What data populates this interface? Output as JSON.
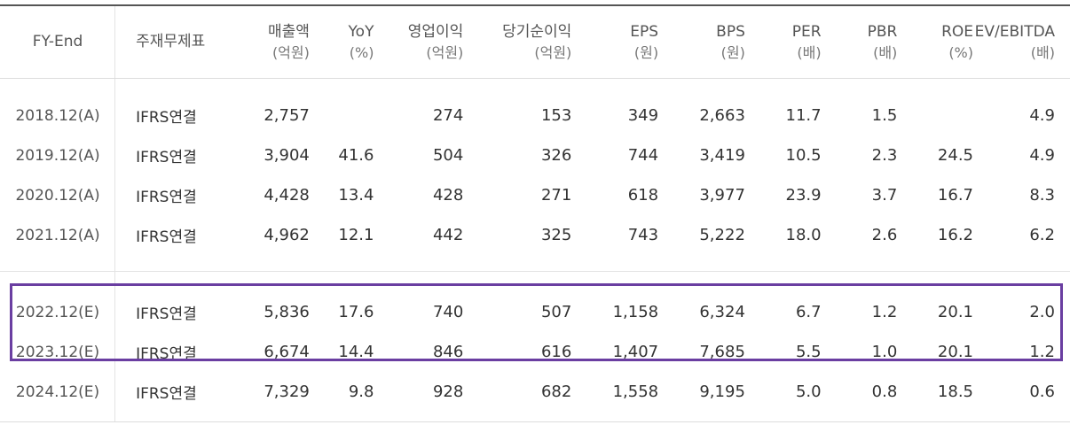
{
  "headers": [
    {
      "label": "FY-End",
      "unit": ""
    },
    {
      "label": "주재무제표",
      "unit": ""
    },
    {
      "label": "매출액",
      "unit": "(억원)"
    },
    {
      "label": "YoY",
      "unit": "(%)"
    },
    {
      "label": "영업이익",
      "unit": "(억원)"
    },
    {
      "label": "당기순이익",
      "unit": "(억원)"
    },
    {
      "label": "EPS",
      "unit": "(원)"
    },
    {
      "label": "BPS",
      "unit": "(원)"
    },
    {
      "label": "PER",
      "unit": "(배)"
    },
    {
      "label": "PBR",
      "unit": "(배)"
    },
    {
      "label": "ROE",
      "unit": "(%)"
    },
    {
      "label": "EV/EBITDA",
      "unit": "(배)"
    }
  ],
  "rows": [
    [
      "2018.12(A)",
      "IFRS연결",
      "2,757",
      "",
      "274",
      "153",
      "349",
      "2,663",
      "11.7",
      "1.5",
      "",
      "4.9"
    ],
    [
      "2019.12(A)",
      "IFRS연결",
      "3,904",
      "41.6",
      "504",
      "326",
      "744",
      "3,419",
      "10.5",
      "2.3",
      "24.5",
      "4.9"
    ],
    [
      "2020.12(A)",
      "IFRS연결",
      "4,428",
      "13.4",
      "428",
      "271",
      "618",
      "3,977",
      "23.9",
      "3.7",
      "16.7",
      "8.3"
    ],
    [
      "2021.12(A)",
      "IFRS연결",
      "4,962",
      "12.1",
      "442",
      "325",
      "743",
      "5,222",
      "18.0",
      "2.6",
      "16.2",
      "6.2"
    ],
    [
      "2022.12(E)",
      "IFRS연결",
      "5,836",
      "17.6",
      "740",
      "507",
      "1,158",
      "6,324",
      "6.7",
      "1.2",
      "20.1",
      "2.0"
    ],
    [
      "2023.12(E)",
      "IFRS연결",
      "6,674",
      "14.4",
      "846",
      "616",
      "1,407",
      "7,685",
      "5.5",
      "1.0",
      "20.1",
      "1.2"
    ],
    [
      "2024.12(E)",
      "IFRS연결",
      "7,329",
      "9.8",
      "928",
      "682",
      "1,558",
      "9,195",
      "5.0",
      "0.8",
      "18.5",
      "0.6"
    ]
  ],
  "highlight": {
    "rows": [
      "2022.12(E)",
      "2023.12(E)"
    ],
    "color": "#6a3ea1"
  }
}
